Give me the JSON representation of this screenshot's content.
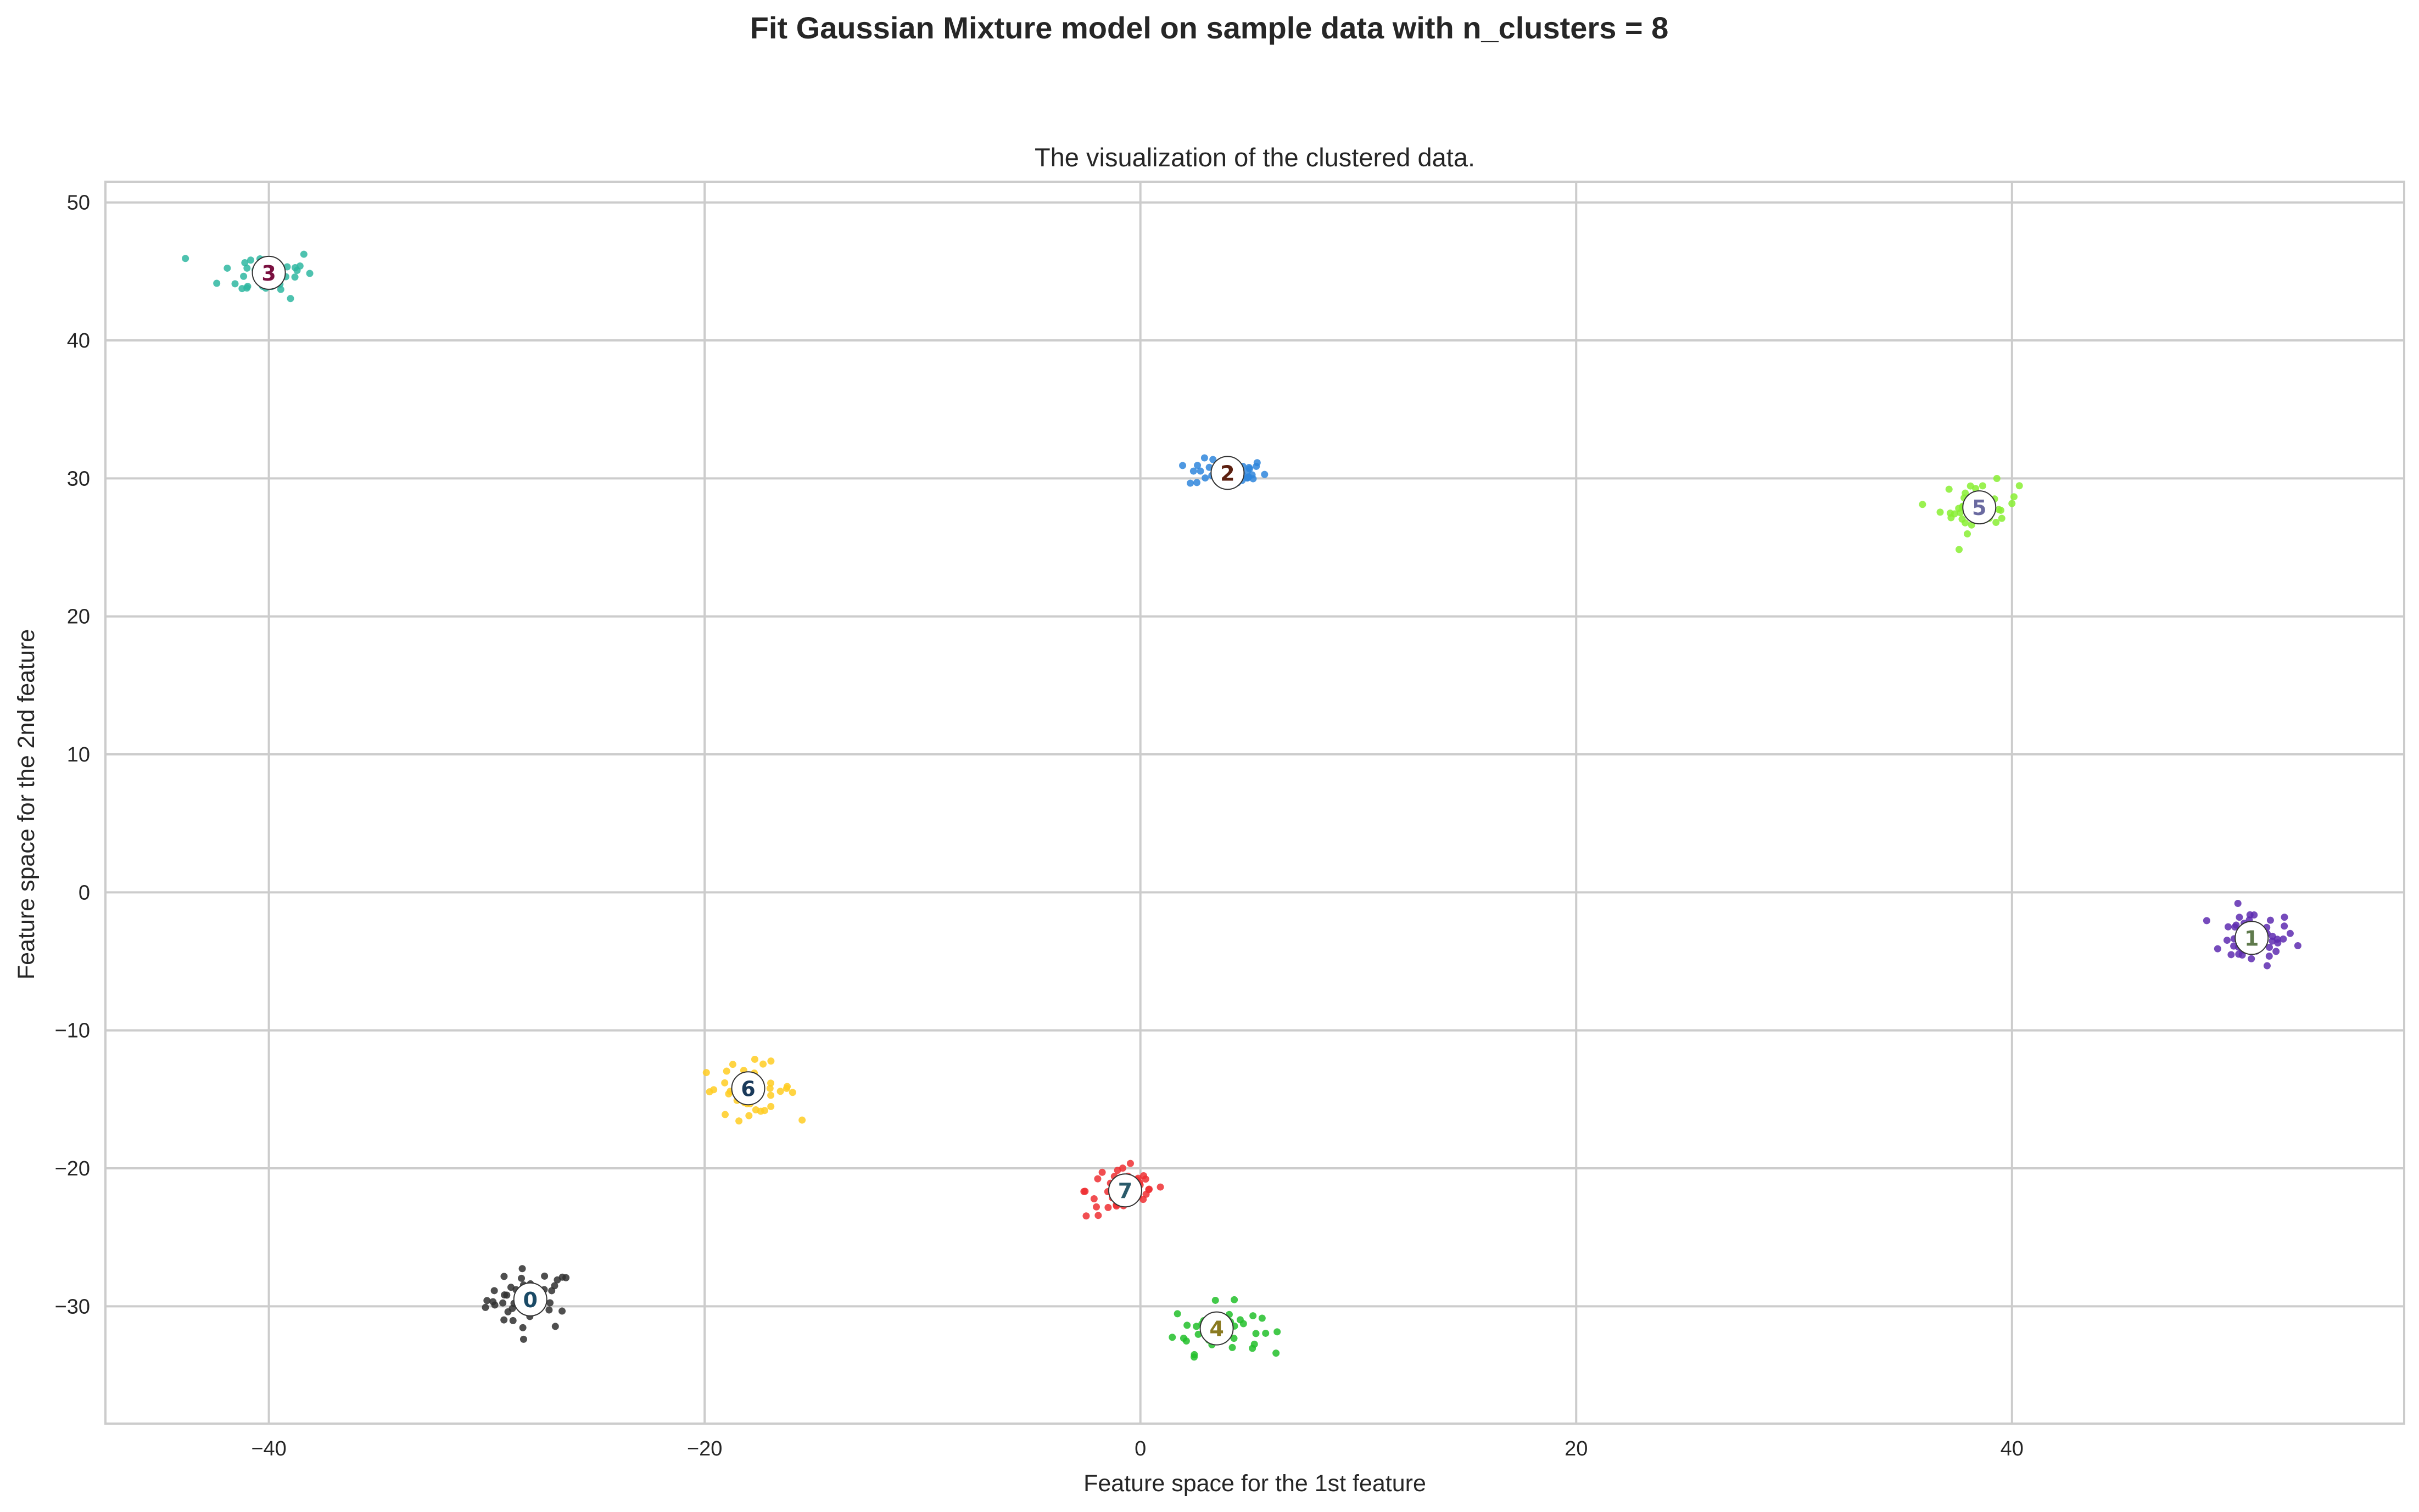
{
  "chart_data": {
    "type": "scatter",
    "suptitle": "Fit Gaussian Mixture model on sample data with n_clusters = 8",
    "title": "The visualization of the clustered data.",
    "xlabel": "Feature space for the 1st feature",
    "ylabel": "Feature space for the 2nd feature",
    "xlim": [
      -47.5,
      58
    ],
    "ylim": [
      -38.5,
      51.5
    ],
    "xticks": [
      -40,
      -20,
      0,
      20,
      40
    ],
    "yticks": [
      -30,
      -20,
      -10,
      0,
      10,
      20,
      30,
      40,
      50
    ],
    "xtick_labels": [
      "−40",
      "−20",
      "0",
      "20",
      "40"
    ],
    "ytick_labels": [
      "−30",
      "−20",
      "−10",
      "0",
      "10",
      "20",
      "30",
      "40",
      "50"
    ],
    "grid": true,
    "clusters": [
      {
        "label": "0",
        "center": [
          -28,
          -29.5
        ],
        "spread": [
          1.0,
          1.1
        ],
        "color": "#303030",
        "label_color": "#1a4a66"
      },
      {
        "label": "1",
        "center": [
          51,
          -3.3
        ],
        "spread": [
          1.0,
          1.0
        ],
        "color": "#5e2bb0",
        "label_color": "#5f7a4c"
      },
      {
        "label": "2",
        "center": [
          4,
          30.4
        ],
        "spread": [
          0.9,
          0.5
        ],
        "color": "#2f86dc",
        "label_color": "#5c2010"
      },
      {
        "label": "3",
        "center": [
          -40,
          44.9
        ],
        "spread": [
          1.1,
          0.9
        ],
        "color": "#2fb7a1",
        "label_color": "#7a1040"
      },
      {
        "label": "4",
        "center": [
          3.5,
          -31.6
        ],
        "spread": [
          1.0,
          0.9
        ],
        "color": "#22c02a",
        "label_color": "#8a7a20"
      },
      {
        "label": "5",
        "center": [
          38.5,
          27.9
        ],
        "spread": [
          0.9,
          0.9
        ],
        "color": "#88ee33",
        "label_color": "#6a6aa0"
      },
      {
        "label": "6",
        "center": [
          -18,
          -14.2
        ],
        "spread": [
          1.1,
          0.9
        ],
        "color": "#ffcc22",
        "label_color": "#1a3a5a"
      },
      {
        "label": "7",
        "center": [
          -0.7,
          -21.6
        ],
        "spread": [
          0.9,
          1.0
        ],
        "color": "#ee2f33",
        "label_color": "#2a5a6a"
      }
    ],
    "points_per_cluster": 45
  }
}
